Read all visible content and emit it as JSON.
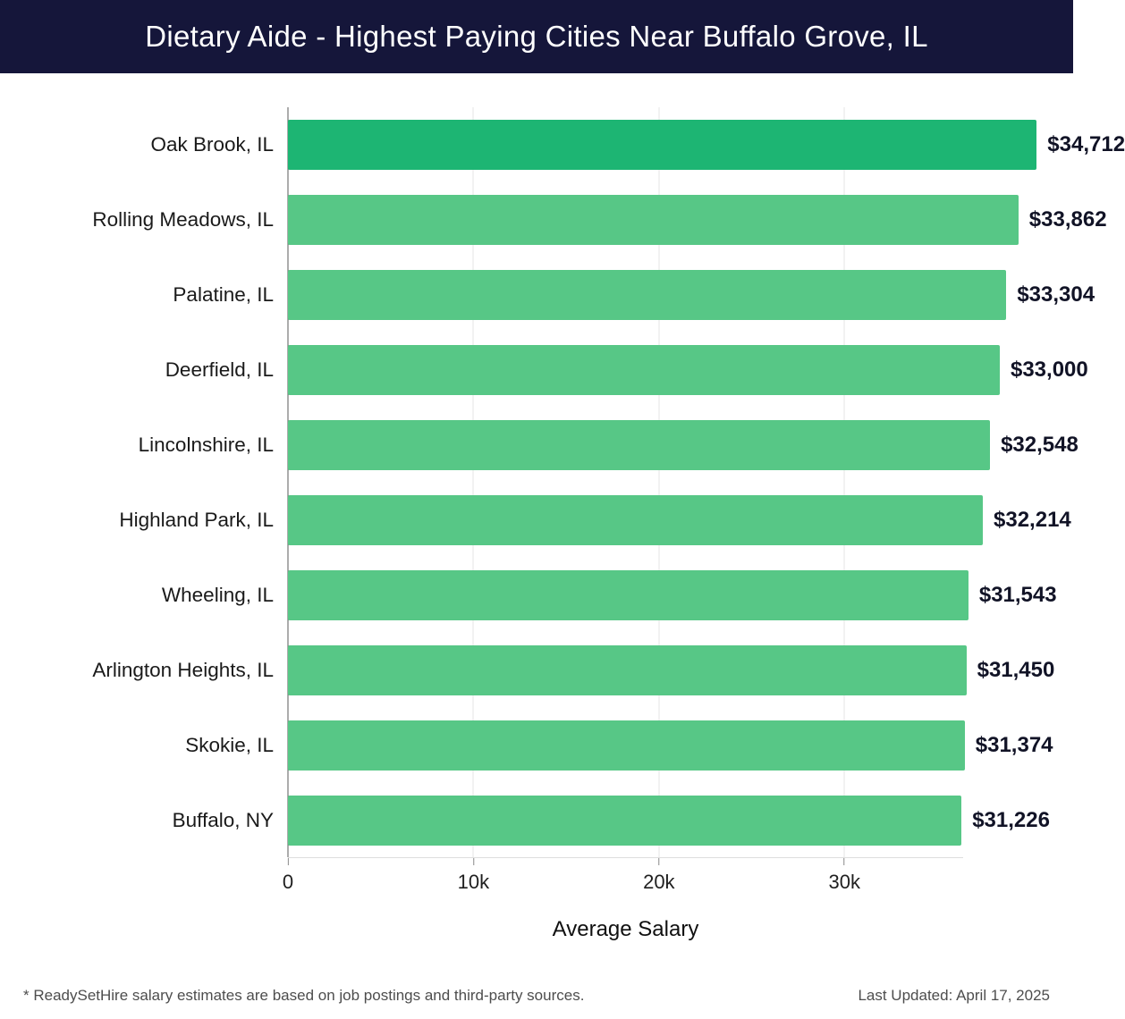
{
  "header": {
    "title": "Dietary Aide - Highest Paying Cities Near Buffalo Grove, IL"
  },
  "chart_data": {
    "type": "bar",
    "orientation": "horizontal",
    "title": "Dietary Aide - Highest Paying Cities Near Buffalo Grove, IL",
    "categories": [
      "Oak Brook, IL",
      "Rolling Meadows, IL",
      "Palatine, IL",
      "Deerfield, IL",
      "Lincolnshire, IL",
      "Highland Park, IL",
      "Wheeling, IL",
      "Arlington Heights, IL",
      "Skokie, IL",
      "Buffalo, NY"
    ],
    "values": [
      34712,
      33862,
      33304,
      33000,
      32548,
      32214,
      31543,
      31450,
      31374,
      31226
    ],
    "value_labels": [
      "$34,712",
      "$33,862",
      "$33,304",
      "$33,000",
      "$32,548",
      "$32,214",
      "$31,543",
      "$31,450",
      "$31,374",
      "$31,226"
    ],
    "xlabel": "Average Salary",
    "x_ticks": [
      "0",
      "10k",
      "20k",
      "30k"
    ],
    "x_tick_values": [
      0,
      10000,
      20000,
      30000
    ],
    "xlim": [
      0,
      36400
    ],
    "grid": true,
    "colors": {
      "bar_first": "#1db573",
      "bar_rest": "#57c786",
      "header_bg": "#15163a",
      "gridline": "#e4e4e4",
      "zero_line": "#5a5a5a"
    }
  },
  "footer": {
    "note": "* ReadySetHire salary estimates are based on job postings and third-party sources.",
    "updated": "Last Updated: April 17, 2025"
  }
}
